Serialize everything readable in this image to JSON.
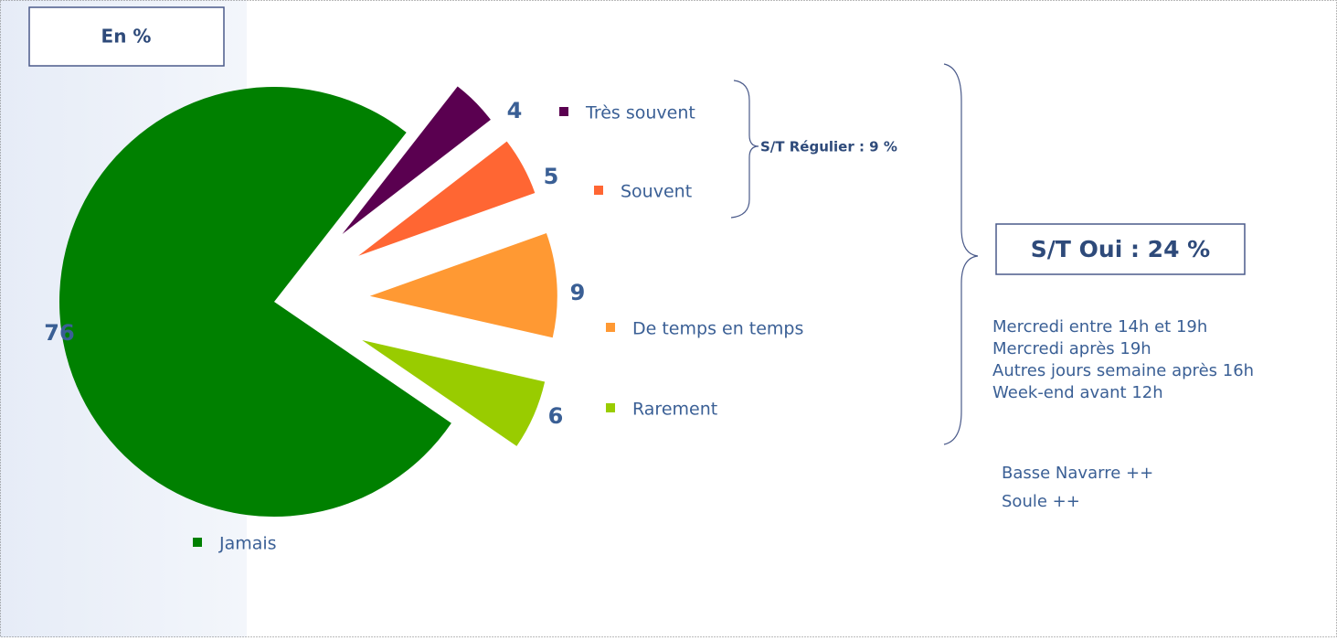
{
  "chart_data": {
    "type": "pie",
    "title": "En %",
    "categories": [
      "Très souvent",
      "Souvent",
      "De temps en temps",
      "Rarement",
      "Jamais"
    ],
    "values": [
      4,
      5,
      9,
      6,
      76
    ],
    "colors": [
      "#5a0050",
      "#ff6633",
      "#ff9933",
      "#99cc00",
      "#008000"
    ],
    "annotations": {
      "regular": "S/T Régulier : 9 %",
      "oui": "S/T Oui : 24 %",
      "times": [
        "Mercredi entre 14h et 19h",
        "Mercredi après 19h",
        "Autres jours semaine après 16h",
        "Week-end avant 12h"
      ],
      "regions": [
        "Basse Navarre ++",
        "Soule ++"
      ]
    }
  }
}
